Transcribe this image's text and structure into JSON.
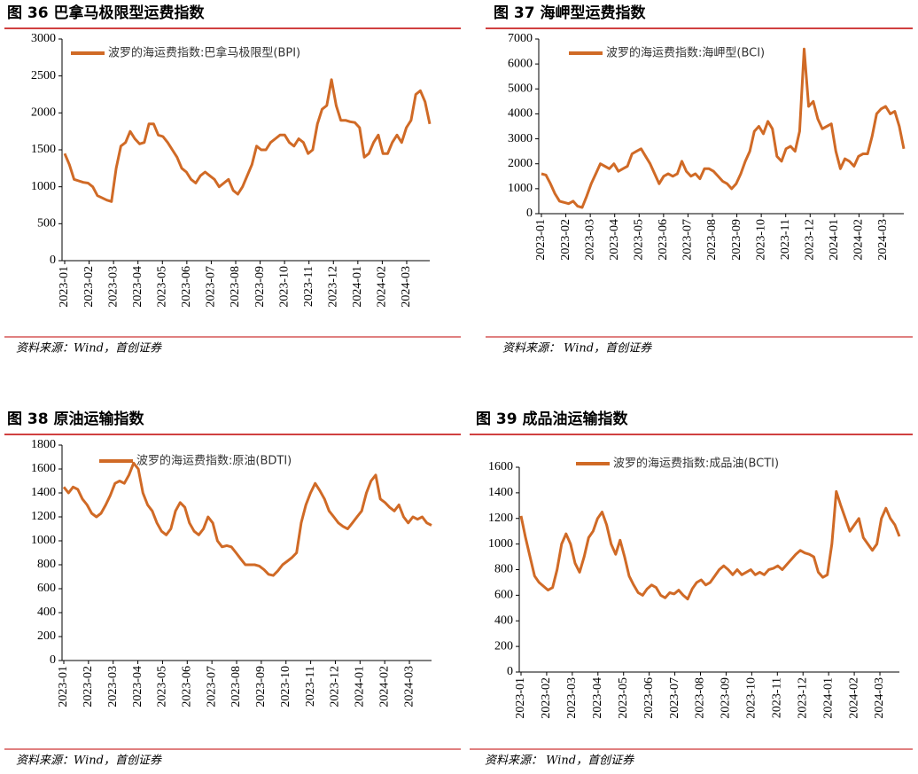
{
  "chart_data": [
    {
      "type": "line",
      "title": "图 36 巴拿马极限型运费指数",
      "source": "资料来源：Wind，首创证券",
      "xticks": [
        "2023-01",
        "2023-02",
        "2023-03",
        "2023-04",
        "2023-05",
        "2023-06",
        "2023-07",
        "2023-08",
        "2023-09",
        "2023-10",
        "2023-11",
        "2023-12",
        "2024-01",
        "2024-02",
        "2024-03"
      ],
      "ylim": [
        0,
        3000
      ],
      "yticks": [
        0,
        500,
        1000,
        1500,
        2000,
        2500,
        3000
      ],
      "series": [
        {
          "name": "波罗的海运费指数:巴拿马极限型(BPI)",
          "color": "#d06a26",
          "values": [
            1450,
            1300,
            1100,
            1080,
            1060,
            1050,
            1000,
            880,
            850,
            820,
            800,
            1250,
            1550,
            1600,
            1750,
            1650,
            1580,
            1600,
            1850,
            1850,
            1700,
            1680,
            1600,
            1500,
            1400,
            1250,
            1200,
            1100,
            1050,
            1150,
            1200,
            1150,
            1100,
            1000,
            1050,
            1100,
            950,
            900,
            1000,
            1150,
            1300,
            1550,
            1500,
            1500,
            1600,
            1650,
            1700,
            1700,
            1600,
            1550,
            1650,
            1600,
            1450,
            1500,
            1850,
            2050,
            2100,
            2450,
            2100,
            1900,
            1900,
            1880,
            1870,
            1800,
            1400,
            1450,
            1600,
            1700,
            1450,
            1450,
            1600,
            1700,
            1600,
            1800,
            1900,
            2250,
            2300,
            2150,
            1850
          ]
        }
      ]
    },
    {
      "type": "line",
      "title": "图 37 海岬型运费指数",
      "source": "资料来源：  Wind，首创证券",
      "xticks": [
        "2023-01",
        "2023-02",
        "2023-03",
        "2023-04",
        "2023-05",
        "2023-06",
        "2023-07",
        "2023-08",
        "2023-09",
        "2023-10",
        "2023-11",
        "2023-12",
        "2024-01",
        "2024-02",
        "2024-03"
      ],
      "ylim": [
        0,
        7000
      ],
      "yticks": [
        0,
        1000,
        2000,
        3000,
        4000,
        5000,
        6000,
        7000
      ],
      "series": [
        {
          "name": "波罗的海运费指数:海岬型(BCI)",
          "color": "#d06a26",
          "values": [
            1600,
            1550,
            1200,
            800,
            500,
            450,
            400,
            500,
            300,
            250,
            700,
            1200,
            1600,
            2000,
            1900,
            1800,
            2000,
            1700,
            1800,
            1900,
            2400,
            2500,
            2600,
            2300,
            2000,
            1600,
            1200,
            1500,
            1600,
            1500,
            1600,
            2100,
            1700,
            1500,
            1600,
            1400,
            1800,
            1800,
            1700,
            1500,
            1300,
            1200,
            1000,
            1200,
            1600,
            2100,
            2500,
            3300,
            3500,
            3200,
            3700,
            3400,
            2300,
            2100,
            2600,
            2700,
            2500,
            3300,
            6600,
            4300,
            4500,
            3800,
            3400,
            3500,
            3600,
            2500,
            1800,
            2200,
            2100,
            1900,
            2300,
            2400,
            2400,
            3100,
            4000,
            4200,
            4300,
            4000,
            4100,
            3500,
            2600
          ]
        }
      ]
    },
    {
      "type": "line",
      "title": "图 38 原油运输指数",
      "source": "资料来源：Wind，首创证券",
      "xticks": [
        "2023-01",
        "2023-02",
        "2023-03",
        "2023-04",
        "2023-05",
        "2023-06",
        "2023-07",
        "2023-08",
        "2023-09",
        "2023-10",
        "2023-11",
        "2023-12",
        "2024-01",
        "2024-02",
        "2024-03"
      ],
      "ylim": [
        0,
        1800
      ],
      "yticks": [
        0,
        200,
        400,
        600,
        800,
        1000,
        1200,
        1400,
        1600,
        1800
      ],
      "series": [
        {
          "name": "波罗的海运费指数:原油(BDTI)",
          "color": "#d06a26",
          "values": [
            1450,
            1400,
            1450,
            1430,
            1350,
            1300,
            1230,
            1200,
            1230,
            1300,
            1380,
            1480,
            1500,
            1480,
            1550,
            1650,
            1600,
            1400,
            1300,
            1250,
            1150,
            1080,
            1050,
            1100,
            1250,
            1320,
            1280,
            1150,
            1080,
            1050,
            1100,
            1200,
            1150,
            1000,
            950,
            960,
            950,
            900,
            850,
            800,
            800,
            800,
            790,
            760,
            720,
            710,
            750,
            800,
            830,
            860,
            900,
            1150,
            1300,
            1400,
            1480,
            1420,
            1350,
            1250,
            1200,
            1150,
            1120,
            1100,
            1150,
            1200,
            1250,
            1400,
            1500,
            1550,
            1350,
            1320,
            1280,
            1250,
            1300,
            1200,
            1150,
            1200,
            1180,
            1200,
            1150,
            1130
          ]
        }
      ]
    },
    {
      "type": "line",
      "title": "图 39 成品油运输指数",
      "source": "资料来源：  Wind，首创证券",
      "xticks": [
        "2023-01",
        "2023-02",
        "2023-03",
        "2023-04",
        "2023-05",
        "2023-06",
        "2023-07",
        "2023-08",
        "2023-09",
        "2023-10",
        "2023-11",
        "2023-12",
        "2024-01",
        "2024-02",
        "2024-03"
      ],
      "ylim": [
        0,
        1600
      ],
      "yticks": [
        0,
        200,
        400,
        600,
        800,
        1000,
        1200,
        1400,
        1600
      ],
      "series": [
        {
          "name": "波罗的海运费指数:成品油(BCTI)",
          "color": "#d06a26",
          "values": [
            1220,
            1050,
            900,
            750,
            700,
            670,
            640,
            660,
            800,
            1000,
            1080,
            1000,
            850,
            780,
            900,
            1050,
            1100,
            1200,
            1250,
            1150,
            1000,
            920,
            1030,
            900,
            750,
            680,
            620,
            600,
            650,
            680,
            660,
            600,
            580,
            620,
            610,
            640,
            600,
            570,
            650,
            700,
            720,
            680,
            700,
            750,
            800,
            830,
            800,
            760,
            800,
            760,
            780,
            800,
            760,
            780,
            760,
            800,
            810,
            830,
            800,
            840,
            880,
            920,
            950,
            930,
            920,
            900,
            780,
            740,
            760,
            1000,
            1410,
            1300,
            1200,
            1100,
            1150,
            1200,
            1050,
            1000,
            950,
            1000,
            1200,
            1280,
            1200,
            1150,
            1060
          ]
        }
      ]
    }
  ]
}
